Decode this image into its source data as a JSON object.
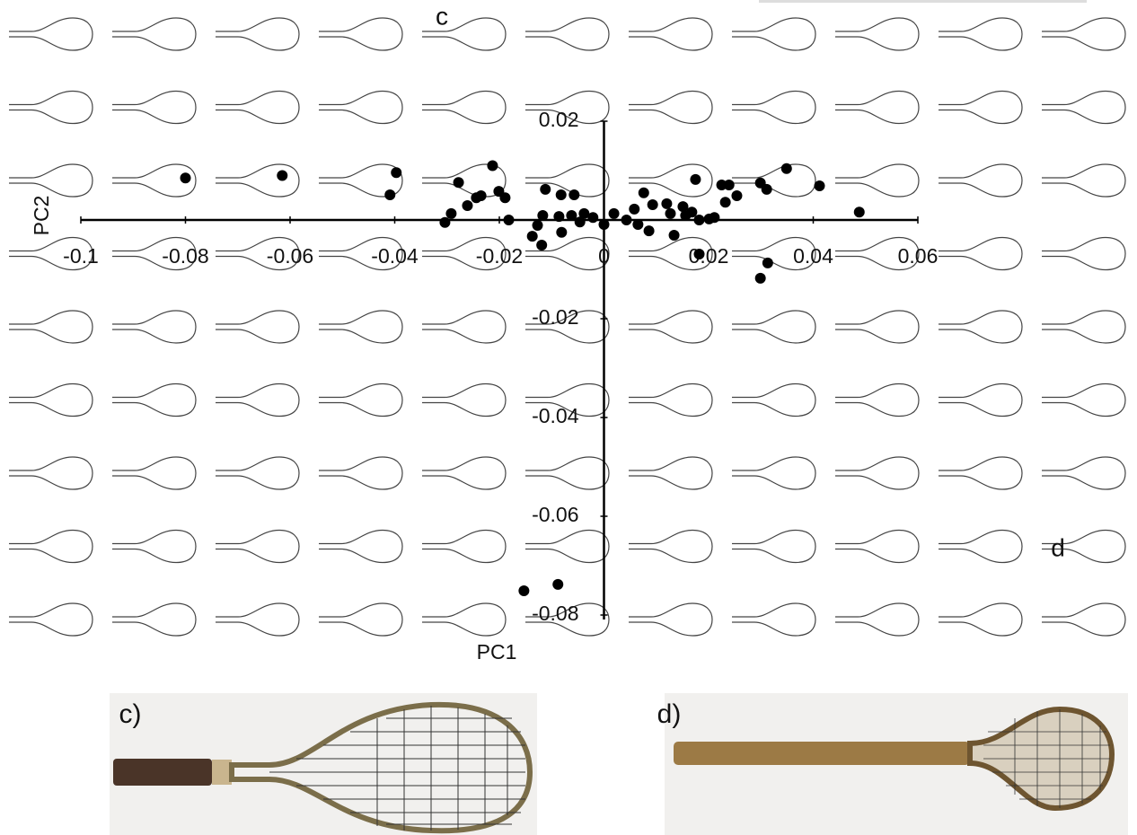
{
  "chart_data": {
    "type": "scatter",
    "x_label": "PC1",
    "y_label": "PC2",
    "x": [
      -0.08,
      -0.0615,
      -0.0397,
      -0.0409,
      -0.0213,
      -0.0278,
      -0.0304,
      -0.0292,
      -0.0261,
      -0.0244,
      -0.0235,
      -0.0201,
      -0.0189,
      -0.0182,
      -0.0137,
      -0.0119,
      -0.0127,
      -0.0117,
      -0.0112,
      -0.0082,
      -0.0057,
      -0.0081,
      -0.0086,
      -0.0062,
      -0.0046,
      -0.0038,
      -0.0021,
      0,
      0.0019,
      0.0043,
      0.0058,
      0.0065,
      0.0076,
      0.0086,
      0.0093,
      0.012,
      0.0127,
      0.0134,
      0.0151,
      0.0156,
      0.0168,
      0.0175,
      0.0182,
      0.0201,
      0.0211,
      0.0182,
      0.0225,
      0.0239,
      0.0232,
      0.0254,
      0.0299,
      0.0311,
      0.0349,
      0.0412,
      0.0488,
      0.0313,
      0.0299,
      -0.0153,
      -0.0088
    ],
    "values": [
      0.0085,
      0.009,
      0.0096,
      0.0051,
      0.011,
      0.0076,
      -0.0005,
      0.0013,
      0.0029,
      0.0045,
      0.0049,
      0.0058,
      0.0045,
      0,
      -0.0033,
      -0.0051,
      -0.0011,
      0.0009,
      0.0062,
      0.0051,
      0.0051,
      -0.0025,
      0.0007,
      0.0009,
      -0.0004,
      0.0013,
      0.0005,
      -0.0009,
      0.0013,
      0,
      0.0022,
      -0.0009,
      0.0055,
      -0.0022,
      0.0031,
      0.0033,
      0.0013,
      -0.0031,
      0.0027,
      0.0009,
      0.0016,
      0.0082,
      0,
      0.0002,
      0.0005,
      -0.0069,
      0.0071,
      0.0071,
      0.0036,
      0.0049,
      0.0075,
      0.0062,
      0.0104,
      0.0069,
      0.0016,
      -0.0087,
      -0.0118,
      -0.0751,
      -0.0738
    ],
    "color": "#000000",
    "xlim": [
      -0.1,
      0.06
    ],
    "xticks": [
      -0.1,
      -0.08,
      -0.06,
      -0.04,
      -0.02,
      0,
      0.02,
      0.04,
      0.06
    ],
    "ylim": [
      -0.08,
      0.02
    ],
    "yticks": [
      0.02,
      -0.02,
      -0.04,
      -0.06,
      -0.08
    ],
    "annotations": [
      "c",
      "d",
      "c)",
      "d)"
    ]
  }
}
